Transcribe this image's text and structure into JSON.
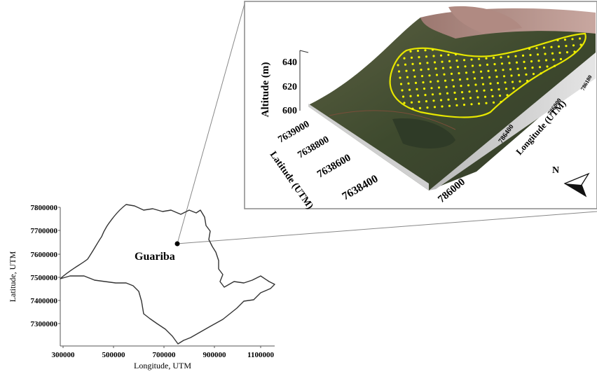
{
  "map": {
    "xlabel": "Longitude, UTM",
    "ylabel": "Latitude, UTM",
    "xticks": [
      "300000",
      "500000",
      "700000",
      "900000",
      "1100000"
    ],
    "yticks": [
      "7800000",
      "7700000",
      "7600000",
      "7500000",
      "7400000",
      "7300000"
    ],
    "place": "Guariba"
  },
  "inset": {
    "altitude_label": "Altitude (m)",
    "altitude_ticks": [
      "640",
      "620",
      "600"
    ],
    "latitude_label": "Latitude (UTM)",
    "latitude_ticks": [
      "7639000",
      "7638800",
      "7638600",
      "7638400"
    ],
    "longitude_label": "Longitude (UTM)",
    "longitude_ticks": [
      "786000",
      "786400",
      "786000",
      "786180"
    ],
    "north_label": "N"
  },
  "colors": {
    "boundary": "#4a4a4a",
    "sample_points": "#f2f200",
    "field_outline": "#e6e600"
  }
}
